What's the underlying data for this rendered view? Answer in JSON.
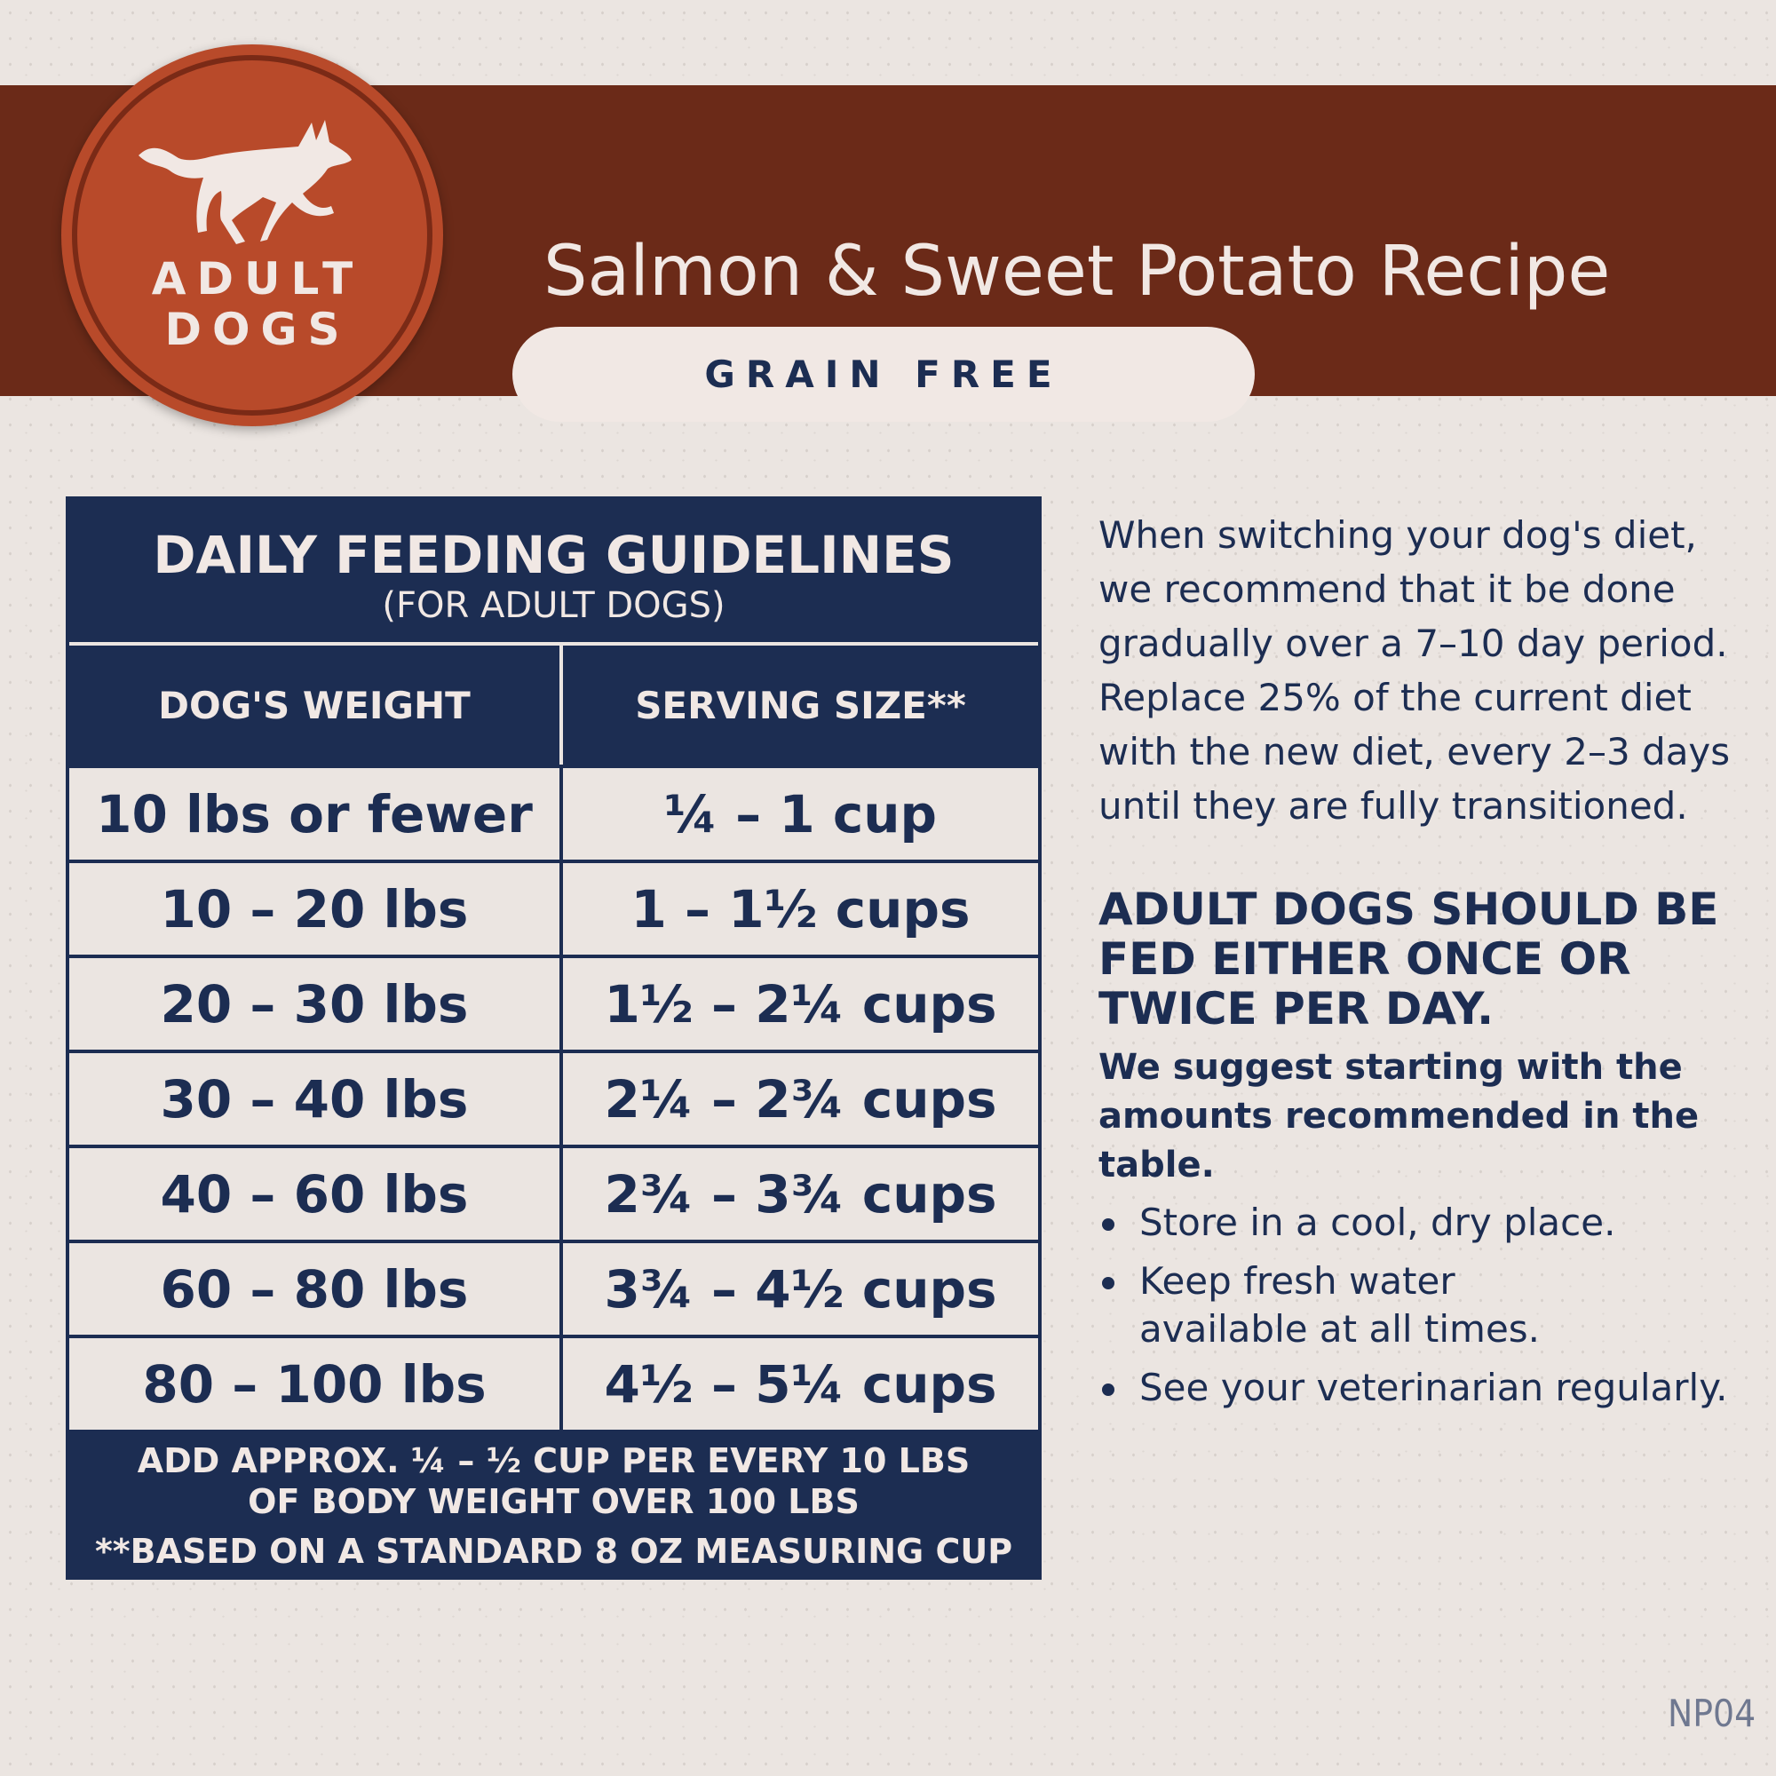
{
  "badge": {
    "line1": "ADULT",
    "line2": "DOGS",
    "icon": "running-dog-icon"
  },
  "header": {
    "title": "Salmon & Sweet Potato Recipe",
    "tag": "GRAIN FREE"
  },
  "table": {
    "title": "DAILY FEEDING GUIDELINES",
    "subtitle": "(FOR ADULT DOGS)",
    "columns": [
      "DOG'S WEIGHT",
      "SERVING SIZE**"
    ],
    "rows": [
      {
        "weight": "10 lbs or fewer",
        "serving": "¼ – 1 cup"
      },
      {
        "weight": "10 – 20 lbs",
        "serving": "1 – 1½ cups"
      },
      {
        "weight": "20 – 30 lbs",
        "serving": "1½ – 2¼ cups"
      },
      {
        "weight": "30 – 40 lbs",
        "serving": "2¼ – 2¾ cups"
      },
      {
        "weight": "40 – 60 lbs",
        "serving": "2¾ – 3¾ cups"
      },
      {
        "weight": "60 – 80 lbs",
        "serving": "3¾ – 4½ cups"
      },
      {
        "weight": "80 – 100 lbs",
        "serving": "4½ – 5¼ cups"
      }
    ],
    "footer1": "ADD APPROX. ¼ – ½ CUP PER EVERY 10 LBS",
    "footer2": "OF BODY WEIGHT OVER 100 LBS",
    "note": "**BASED ON A STANDARD 8 OZ MEASURING CUP"
  },
  "side": {
    "intro": "When switching your dog's diet, we recommend that it be done gradually over a 7–10 day period. Replace 25% of the current diet with the new diet, every 2–3 days until they are fully transitioned.",
    "heading": "ADULT DOGS SHOULD BE FED EITHER ONCE OR TWICE PER DAY.",
    "suggest": "We suggest starting with the amounts recommended in the table.",
    "bullets": [
      "Store in a cool, dry place.",
      "Keep fresh water available at all times.",
      "See your veterinarian regularly."
    ]
  },
  "code": "NP04",
  "colors": {
    "navy": "#1c2d52",
    "brown": "#6b2a18",
    "orange": "#b84a2a",
    "background": "#ebe5e1"
  }
}
